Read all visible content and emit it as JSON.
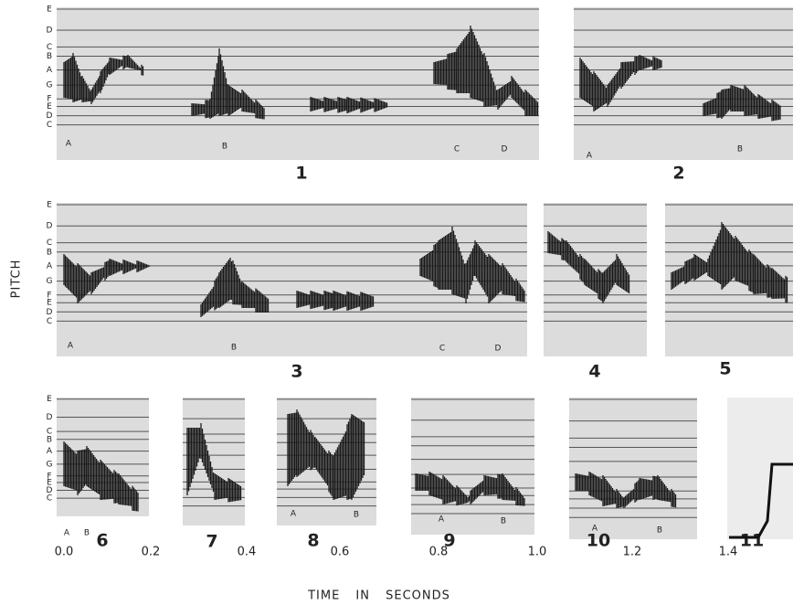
{
  "y_axis_label": "PITCH",
  "x_axis_label": "TIME IN SECONDS",
  "pitch_labels": [
    "E",
    "D",
    "C",
    "B",
    "A",
    "G",
    "F",
    "E",
    "D",
    "C"
  ],
  "time_ticks": [
    "0.0",
    "0.2",
    "0.4",
    "0.6",
    "0.8",
    "1.0",
    "1.2",
    "1.4"
  ],
  "panels": [
    {
      "number": "1",
      "segments": [
        "A",
        "B",
        "C",
        "D"
      ]
    },
    {
      "number": "2",
      "segments": [
        "A",
        "B"
      ]
    },
    {
      "number": "3",
      "segments": [
        "A",
        "B",
        "C",
        "D"
      ]
    },
    {
      "number": "4",
      "segments": []
    },
    {
      "number": "5",
      "segments": []
    },
    {
      "number": "6",
      "segments": [
        "A",
        "B"
      ]
    },
    {
      "number": "7",
      "segments": []
    },
    {
      "number": "8",
      "segments": [
        "A",
        "B"
      ]
    },
    {
      "number": "9",
      "segments": [
        "A",
        "B"
      ]
    },
    {
      "number": "10",
      "segments": [
        "A",
        "B"
      ]
    },
    {
      "number": "11",
      "segments": []
    }
  ]
}
